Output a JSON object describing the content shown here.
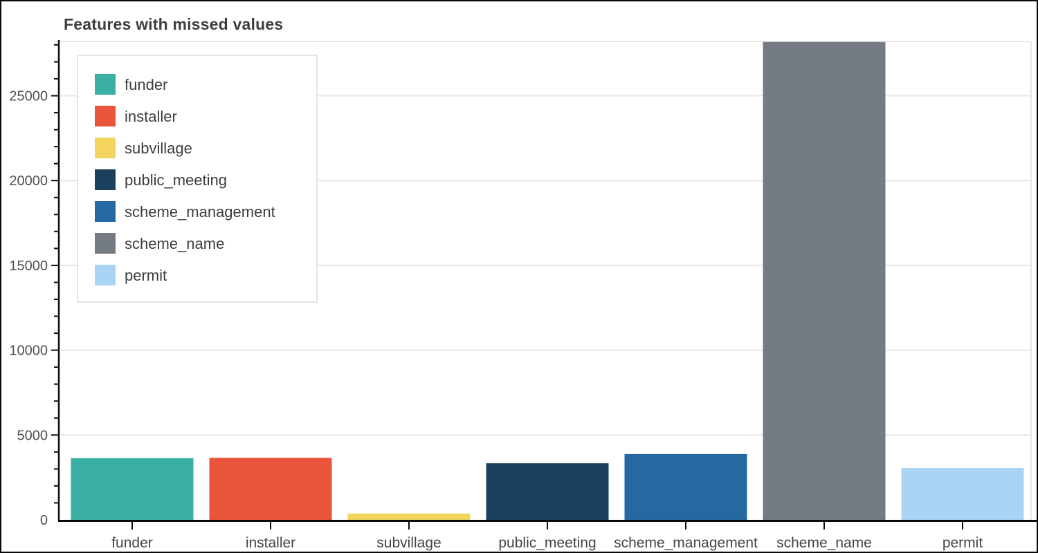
{
  "chart_data": {
    "type": "bar",
    "title": "Features with missed values",
    "categories": [
      "funder",
      "installer",
      "subvillage",
      "public_meeting",
      "scheme_management",
      "scheme_name",
      "permit"
    ],
    "values": [
      3635,
      3655,
      371,
      3334,
      3877,
      28166,
      3056
    ],
    "colors": [
      "#3ab0a4",
      "#ea533c",
      "#f3d45e",
      "#1a405e",
      "#2668a2",
      "#747b82",
      "#a9d4f3"
    ],
    "legend_items": [
      {
        "label": "funder",
        "color": "#3ab0a4"
      },
      {
        "label": "installer",
        "color": "#ea533c"
      },
      {
        "label": "subvillage",
        "color": "#f3d45e"
      },
      {
        "label": "public_meeting",
        "color": "#1a405e"
      },
      {
        "label": "scheme_management",
        "color": "#2668a2"
      },
      {
        "label": "scheme_name",
        "color": "#747b82"
      },
      {
        "label": "permit",
        "color": "#a9d4f3"
      }
    ],
    "legend_position": "top-left",
    "xlabel": "",
    "ylabel": "",
    "ylim": [
      0,
      28200
    ],
    "y_tick_values": [
      0,
      5000,
      10000,
      15000,
      20000,
      25000
    ],
    "y_tick_labels": [
      "0",
      "5000",
      "10000",
      "15000",
      "20000",
      "25000"
    ],
    "minor_tick_step": 1000,
    "grid": "horizontal",
    "styles": {
      "grid_color": "#e6e6e6",
      "axis_color": "#0a0a0a",
      "title_color": "#3d3d3d",
      "tick_label_color": "#4f4f4f",
      "legend_border_color": "#dcdcdc",
      "legend_background": "#ffffff",
      "background": "#ffffff"
    }
  }
}
